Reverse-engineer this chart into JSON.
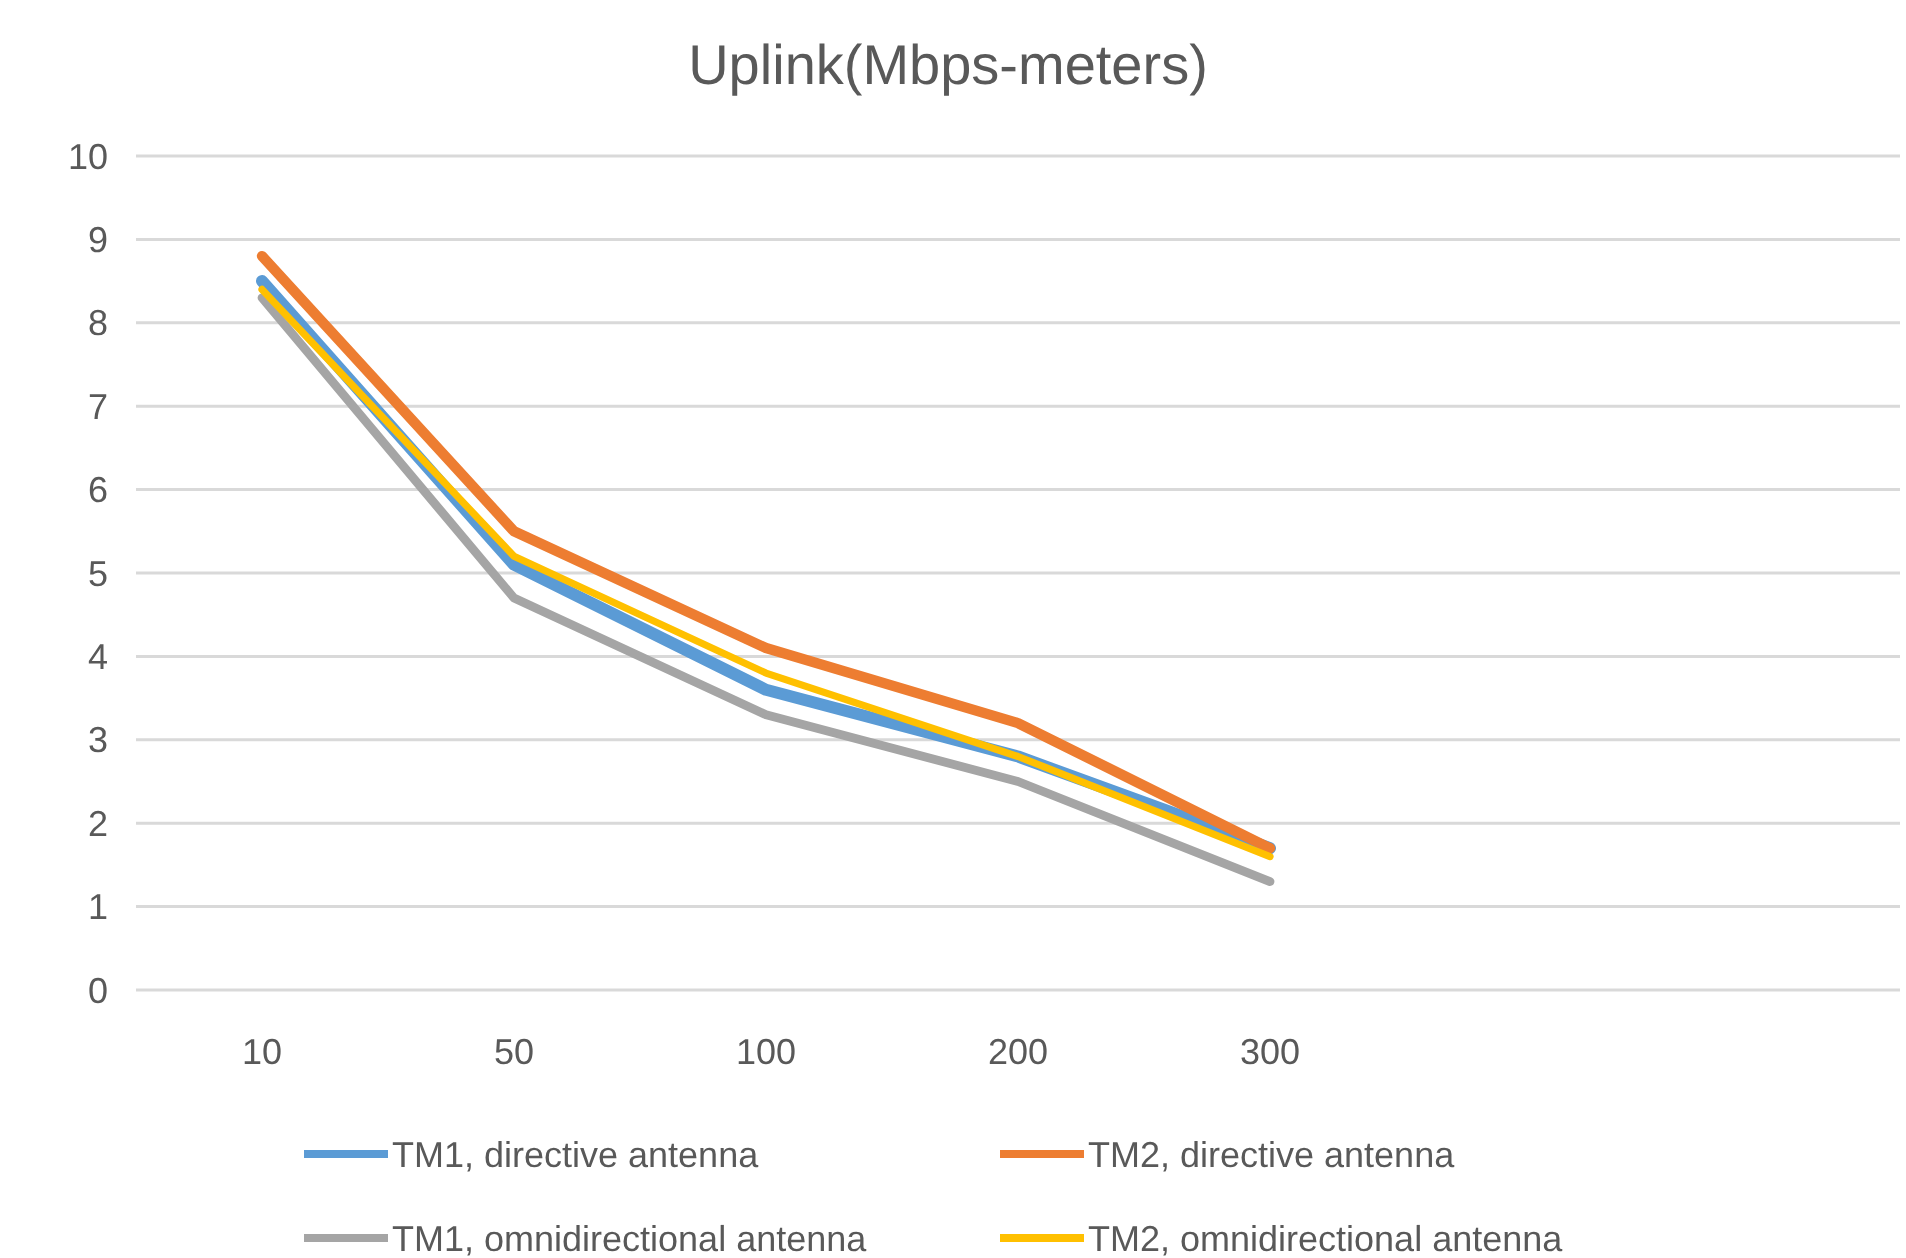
{
  "chart_data": {
    "type": "line",
    "title": "Uplink(Mbps-meters)",
    "categories": [
      "10",
      "50",
      "100",
      "200",
      "300",
      null,
      null
    ],
    "series": [
      {
        "name": "TM1, directive antenna",
        "color": "#5b9bd5",
        "values": [
          8.5,
          5.1,
          3.6,
          2.8,
          1.7,
          null,
          null
        ]
      },
      {
        "name": "TM2, directive antenna",
        "color": "#ed7d31",
        "values": [
          8.8,
          5.5,
          4.1,
          3.2,
          1.7,
          null,
          null
        ]
      },
      {
        "name": "TM1, omnidirectional antenna",
        "color": "#a5a5a5",
        "values": [
          8.3,
          4.7,
          3.3,
          2.5,
          1.3,
          null,
          null
        ]
      },
      {
        "name": "TM2, omnidirectional antenna",
        "color": "#ffc000",
        "values": [
          8.4,
          5.2,
          3.8,
          2.8,
          1.6,
          null,
          null
        ]
      }
    ],
    "ylim": [
      0,
      10
    ],
    "yticks": [
      0,
      1,
      2,
      3,
      4,
      5,
      6,
      7,
      8,
      9,
      10
    ],
    "grid": "y",
    "legend": "bottom",
    "marker": "none",
    "line_style": "solid"
  }
}
